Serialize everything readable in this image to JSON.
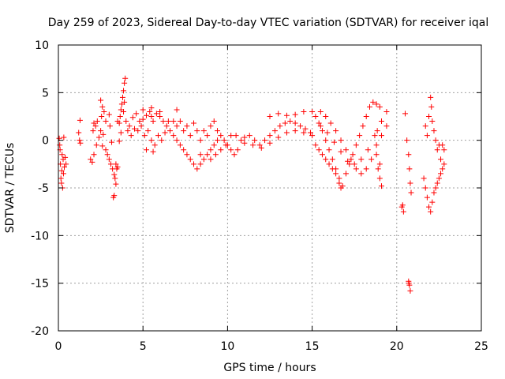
{
  "chart_data": {
    "type": "scatter",
    "title": "Day 259 of 2023, Sidereal Day-to-day VTEC variation (SDTVAR) for receiver iqal",
    "xlabel": "GPS time / hours",
    "ylabel": "SDTVAR / TECUs",
    "xlim": [
      0,
      25
    ],
    "ylim": [
      -20,
      10
    ],
    "xticks": [
      0,
      5,
      10,
      15,
      20,
      25
    ],
    "yticks": [
      -20,
      -15,
      -10,
      -5,
      0,
      5,
      10
    ],
    "xtick_labels": [
      "0",
      "5",
      "10",
      "15",
      "20",
      "25"
    ],
    "ytick_labels": [
      "-20",
      "-15",
      "-10",
      "-5",
      "0",
      "5",
      "10"
    ],
    "grid": true,
    "marker": "+",
    "color": "#ff0000",
    "series": [
      {
        "name": "SDTVAR",
        "points": [
          [
            0.05,
            0.2
          ],
          [
            0.1,
            -1.0
          ],
          [
            0.12,
            -2.5
          ],
          [
            0.15,
            -4.0
          ],
          [
            0.2,
            -3.2
          ],
          [
            0.22,
            -1.5
          ],
          [
            0.25,
            -5.0
          ],
          [
            0.28,
            -2.0
          ],
          [
            0.3,
            -3.5
          ],
          [
            0.35,
            -2.8
          ],
          [
            0.4,
            -1.8
          ],
          [
            0.45,
            -2.5
          ],
          [
            0.18,
            -4.5
          ],
          [
            0.08,
            -0.5
          ],
          [
            0.32,
            0.3
          ],
          [
            1.2,
            0.8
          ],
          [
            1.25,
            0.0
          ],
          [
            1.3,
            -0.3
          ],
          [
            1.28,
            2.1
          ],
          [
            1.9,
            -2.0
          ],
          [
            2.0,
            -2.3
          ],
          [
            2.1,
            -1.5
          ],
          [
            2.2,
            1.5
          ],
          [
            2.3,
            2.0
          ],
          [
            2.1,
            1.8
          ],
          [
            2.05,
            1.0
          ],
          [
            2.25,
            -0.5
          ],
          [
            2.4,
            0.3
          ],
          [
            2.5,
            1.0
          ],
          [
            2.55,
            2.5
          ],
          [
            2.6,
            3.5
          ],
          [
            2.5,
            4.2
          ],
          [
            2.7,
            3.0
          ],
          [
            2.8,
            2.0
          ],
          [
            2.65,
            0.6
          ],
          [
            2.6,
            -0.6
          ],
          [
            2.8,
            -1.0
          ],
          [
            2.9,
            -1.5
          ],
          [
            3.0,
            -2.0
          ],
          [
            3.1,
            -2.5
          ],
          [
            3.2,
            -3.0
          ],
          [
            3.3,
            -3.6
          ],
          [
            3.35,
            -4.0
          ],
          [
            3.4,
            -4.6
          ],
          [
            3.3,
            -5.8
          ],
          [
            3.25,
            -6.0
          ],
          [
            3.45,
            -3.0
          ],
          [
            3.5,
            -2.8
          ],
          [
            3.4,
            -2.5
          ],
          [
            3.05,
            1.5
          ],
          [
            3.15,
            -0.2
          ],
          [
            3.0,
            2.7
          ],
          [
            3.5,
            2.0
          ],
          [
            3.6,
            1.8
          ],
          [
            3.65,
            2.5
          ],
          [
            3.7,
            3.2
          ],
          [
            3.75,
            3.8
          ],
          [
            3.8,
            4.5
          ],
          [
            3.85,
            5.2
          ],
          [
            3.9,
            6.0
          ],
          [
            3.95,
            6.5
          ],
          [
            3.9,
            4.0
          ],
          [
            3.85,
            3.0
          ],
          [
            3.6,
            -0.1
          ],
          [
            3.7,
            0.8
          ],
          [
            4.0,
            2.0
          ],
          [
            4.2,
            1.5
          ],
          [
            4.4,
            2.4
          ],
          [
            4.6,
            2.8
          ],
          [
            4.8,
            2.0
          ],
          [
            5.0,
            2.2
          ],
          [
            5.2,
            2.6
          ],
          [
            5.4,
            3.0
          ],
          [
            5.5,
            2.5
          ],
          [
            5.6,
            2.0
          ],
          [
            5.8,
            2.8
          ],
          [
            6.0,
            2.5
          ],
          [
            6.2,
            2.0
          ],
          [
            6.4,
            1.5
          ],
          [
            4.1,
            1.0
          ],
          [
            4.3,
            0.5
          ],
          [
            4.5,
            1.2
          ],
          [
            4.7,
            1.0
          ],
          [
            4.9,
            1.5
          ],
          [
            5.1,
            0.5
          ],
          [
            5.3,
            1.0
          ],
          [
            5.5,
            0.0
          ],
          [
            5.7,
            -0.5
          ],
          [
            5.9,
            0.5
          ],
          [
            6.1,
            0.0
          ],
          [
            6.3,
            0.8
          ],
          [
            5.0,
            3.2
          ],
          [
            5.5,
            3.4
          ],
          [
            6.0,
            3.0
          ],
          [
            6.5,
            2.0
          ],
          [
            5.2,
            -1.0
          ],
          [
            5.6,
            -1.2
          ],
          [
            6.6,
            1.0
          ],
          [
            6.8,
            0.5
          ],
          [
            7.0,
            0.0
          ],
          [
            7.2,
            -0.5
          ],
          [
            7.4,
            -1.0
          ],
          [
            7.6,
            -1.5
          ],
          [
            7.8,
            -2.0
          ],
          [
            8.0,
            -2.5
          ],
          [
            8.2,
            -3.0
          ],
          [
            8.4,
            -2.5
          ],
          [
            8.6,
            -2.0
          ],
          [
            8.8,
            -1.5
          ],
          [
            9.0,
            -1.0
          ],
          [
            9.2,
            -0.5
          ],
          [
            9.4,
            0.0
          ],
          [
            6.8,
            2.0
          ],
          [
            7.0,
            1.5
          ],
          [
            7.2,
            2.0
          ],
          [
            7.4,
            1.0
          ],
          [
            7.6,
            1.5
          ],
          [
            7.8,
            0.5
          ],
          [
            8.0,
            1.8
          ],
          [
            8.2,
            1.0
          ],
          [
            8.4,
            0.0
          ],
          [
            8.6,
            1.0
          ],
          [
            8.8,
            0.5
          ],
          [
            9.0,
            1.5
          ],
          [
            9.2,
            2.0
          ],
          [
            9.4,
            1.0
          ],
          [
            9.6,
            0.5
          ],
          [
            9.8,
            0.0
          ],
          [
            10.0,
            -0.5
          ],
          [
            10.2,
            -1.0
          ],
          [
            10.4,
            -1.5
          ],
          [
            10.6,
            -1.0
          ],
          [
            7.0,
            3.2
          ],
          [
            8.4,
            -1.5
          ],
          [
            9.0,
            -2.0
          ],
          [
            9.3,
            -1.5
          ],
          [
            9.6,
            -1.0
          ],
          [
            9.9,
            -0.5
          ],
          [
            10.2,
            0.5
          ],
          [
            10.5,
            0.5
          ],
          [
            10.8,
            0.0
          ],
          [
            11.0,
            0.3
          ],
          [
            11.3,
            0.5
          ],
          [
            11.6,
            0.0
          ],
          [
            11.9,
            -0.5
          ],
          [
            12.2,
            0.0
          ],
          [
            12.5,
            0.5
          ],
          [
            12.8,
            1.0
          ],
          [
            13.1,
            1.5
          ],
          [
            13.4,
            1.8
          ],
          [
            13.7,
            2.0
          ],
          [
            14.0,
            1.8
          ],
          [
            14.3,
            1.5
          ],
          [
            14.6,
            1.2
          ],
          [
            14.9,
            0.8
          ],
          [
            11.0,
            -0.3
          ],
          [
            11.5,
            -0.5
          ],
          [
            12.0,
            -0.8
          ],
          [
            12.5,
            -0.3
          ],
          [
            13.0,
            0.3
          ],
          [
            13.5,
            0.8
          ],
          [
            14.0,
            1.0
          ],
          [
            14.5,
            0.8
          ],
          [
            15.0,
            0.5
          ],
          [
            12.5,
            2.5
          ],
          [
            13.0,
            2.8
          ],
          [
            13.5,
            2.6
          ],
          [
            14.0,
            2.7
          ],
          [
            14.5,
            3.0
          ],
          [
            15.0,
            3.0
          ],
          [
            15.2,
            2.5
          ],
          [
            15.4,
            1.8
          ],
          [
            15.6,
            1.0
          ],
          [
            15.8,
            0.0
          ],
          [
            16.0,
            -1.0
          ],
          [
            16.2,
            -2.0
          ],
          [
            16.4,
            -3.0
          ],
          [
            16.6,
            -4.5
          ],
          [
            16.7,
            -5.0
          ],
          [
            16.8,
            -4.8
          ],
          [
            17.0,
            -3.5
          ],
          [
            17.2,
            -2.5
          ],
          [
            17.4,
            -1.5
          ],
          [
            17.6,
            -0.5
          ],
          [
            17.8,
            0.5
          ],
          [
            18.0,
            1.5
          ],
          [
            18.2,
            2.5
          ],
          [
            18.4,
            3.5
          ],
          [
            18.6,
            4.0
          ],
          [
            18.8,
            3.8
          ],
          [
            19.0,
            3.5
          ],
          [
            15.2,
            -0.5
          ],
          [
            15.4,
            -1.0
          ],
          [
            15.6,
            -1.5
          ],
          [
            15.8,
            -2.0
          ],
          [
            16.0,
            -2.5
          ],
          [
            16.2,
            -3.0
          ],
          [
            16.4,
            -3.5
          ],
          [
            16.6,
            -4.0
          ],
          [
            15.5,
            3.0
          ],
          [
            15.8,
            2.5
          ],
          [
            16.1,
            1.8
          ],
          [
            16.4,
            1.0
          ],
          [
            16.7,
            0.0
          ],
          [
            17.0,
            -1.0
          ],
          [
            17.3,
            -2.0
          ],
          [
            17.6,
            -3.0
          ],
          [
            17.9,
            -3.5
          ],
          [
            18.2,
            -3.0
          ],
          [
            18.5,
            -2.0
          ],
          [
            18.8,
            -0.5
          ],
          [
            19.1,
            0.5
          ],
          [
            19.4,
            1.5
          ],
          [
            15.5,
            1.5
          ],
          [
            15.9,
            0.8
          ],
          [
            16.3,
            -0.2
          ],
          [
            16.7,
            -1.2
          ],
          [
            17.1,
            -2.2
          ],
          [
            17.5,
            -2.5
          ],
          [
            17.9,
            -2.0
          ],
          [
            18.3,
            -1.0
          ],
          [
            18.7,
            0.5
          ],
          [
            19.1,
            2.0
          ],
          [
            19.4,
            3.0
          ],
          [
            18.8,
            -1.5
          ],
          [
            18.9,
            -3.0
          ],
          [
            19.0,
            -4.0
          ],
          [
            19.1,
            -4.8
          ],
          [
            19.0,
            -2.5
          ],
          [
            18.85,
            1.0
          ],
          [
            20.3,
            -7.0
          ],
          [
            20.4,
            -7.5
          ],
          [
            20.35,
            -6.8
          ],
          [
            20.5,
            2.8
          ],
          [
            20.6,
            0.0
          ],
          [
            20.7,
            -1.5
          ],
          [
            20.75,
            -3.0
          ],
          [
            20.8,
            -4.5
          ],
          [
            20.85,
            -5.5
          ],
          [
            20.7,
            -14.8
          ],
          [
            20.75,
            -15.2
          ],
          [
            20.8,
            -15.8
          ],
          [
            20.72,
            -15.0
          ],
          [
            21.6,
            -4.0
          ],
          [
            21.7,
            -5.0
          ],
          [
            21.8,
            -6.0
          ],
          [
            21.9,
            -7.0
          ],
          [
            22.0,
            -7.5
          ],
          [
            22.1,
            -6.5
          ],
          [
            22.2,
            -5.5
          ],
          [
            22.3,
            -5.0
          ],
          [
            22.4,
            -4.5
          ],
          [
            22.5,
            -4.0
          ],
          [
            22.6,
            -3.5
          ],
          [
            22.7,
            -3.0
          ],
          [
            22.8,
            -2.5
          ],
          [
            21.7,
            1.5
          ],
          [
            21.8,
            0.5
          ],
          [
            21.9,
            2.5
          ],
          [
            22.0,
            4.5
          ],
          [
            22.05,
            3.5
          ],
          [
            22.1,
            2.0
          ],
          [
            22.2,
            1.0
          ],
          [
            22.3,
            0.0
          ],
          [
            22.4,
            -1.0
          ],
          [
            22.5,
            -0.5
          ],
          [
            22.7,
            -0.5
          ],
          [
            22.8,
            -1.0
          ],
          [
            22.6,
            -2.0
          ]
        ]
      }
    ]
  }
}
